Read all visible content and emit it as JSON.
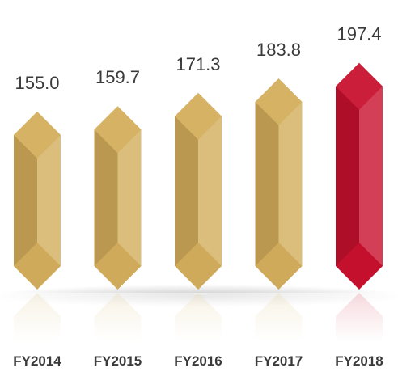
{
  "chart_data": {
    "type": "bar",
    "categories": [
      "FY2014",
      "FY2015",
      "FY2016",
      "FY2017",
      "FY2018"
    ],
    "values": [
      155.0,
      159.7,
      171.3,
      183.8,
      197.4
    ],
    "value_labels": [
      "155.0",
      "159.7",
      "171.3",
      "183.8",
      "197.4"
    ],
    "colors": [
      "#d4ae5c",
      "#d4ae5c",
      "#d4ae5c",
      "#d4ae5c",
      "#c8102e"
    ]
  }
}
